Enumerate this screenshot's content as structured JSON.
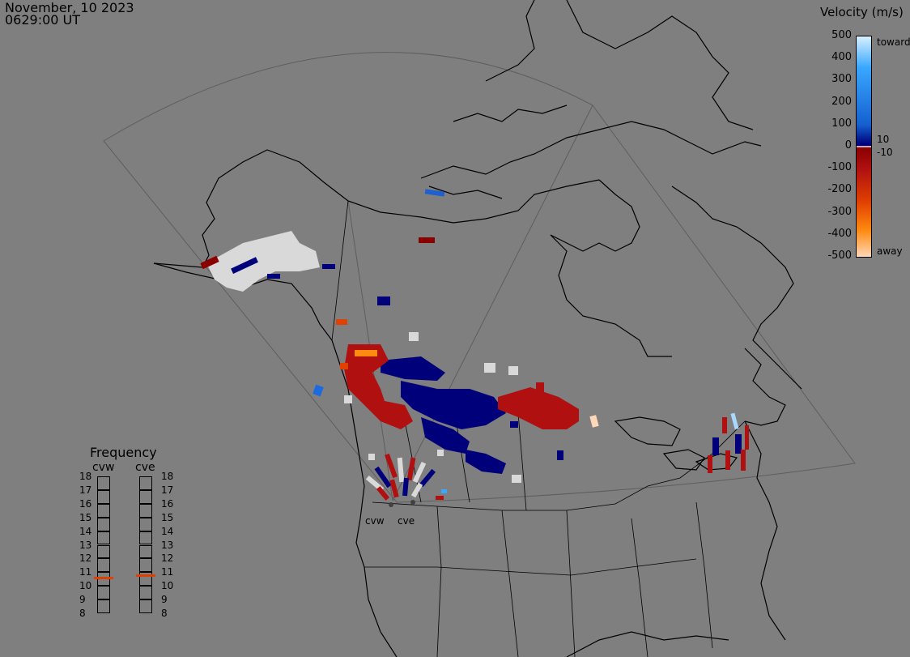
{
  "header": {
    "date": "November, 10 2023",
    "time": "0629:00 UT"
  },
  "colorbar": {
    "title": "Velocity (m/s)",
    "ticks": [
      "500",
      "400",
      "300",
      "200",
      "100",
      "0",
      "-100",
      "-200",
      "-300",
      "-400",
      "-500"
    ],
    "inner_labels": [
      "10",
      "-10"
    ],
    "toward_label": "toward",
    "away_label": "away",
    "range": [
      -500,
      500
    ]
  },
  "frequency": {
    "title": "Frequency",
    "radars": [
      "cvw",
      "cve"
    ],
    "levels": [
      "18",
      "17",
      "16",
      "15",
      "14",
      "13",
      "12",
      "11",
      "10",
      "9",
      "8"
    ],
    "values": {
      "cvw": 10.6,
      "cve": 10.8
    }
  },
  "radar_sites": [
    "cvw",
    "cve"
  ],
  "colors": {
    "background": "#7f7f7f",
    "ground_scatter": "#d9d9d9",
    "coast": "#000000",
    "fov": "#5e5e5e",
    "toward": "#00008b",
    "away": "#b00000",
    "freq_marker": "#e04000"
  }
}
